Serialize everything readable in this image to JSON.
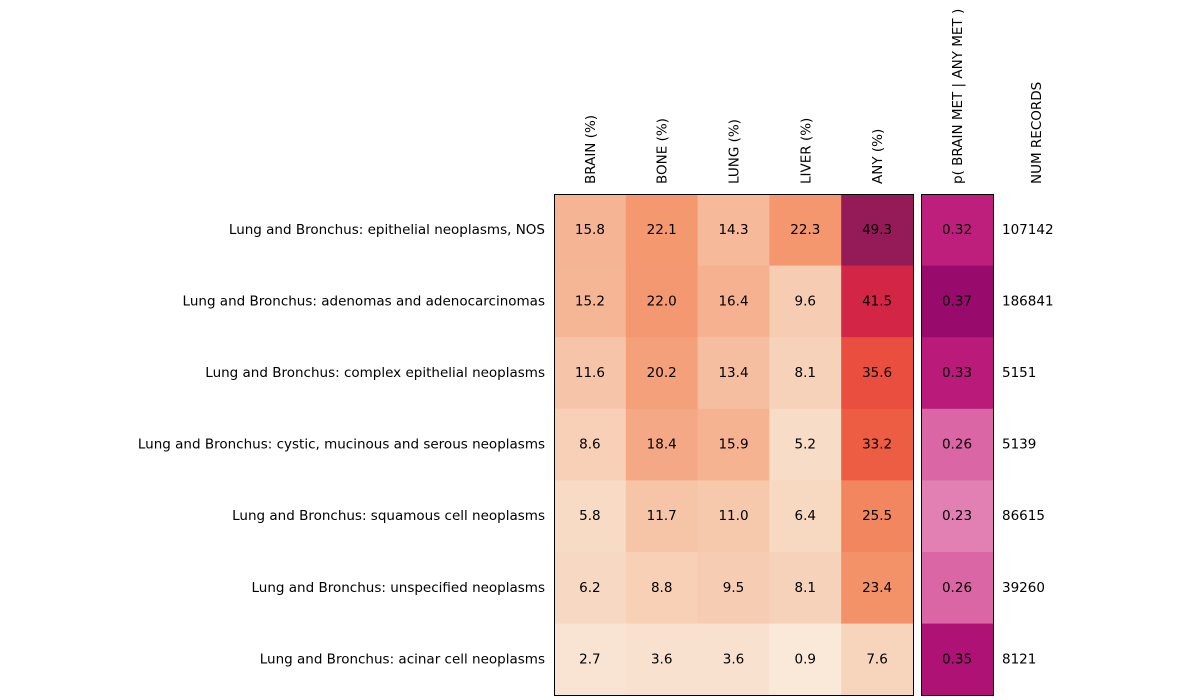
{
  "chart_data": {
    "type": "heatmap",
    "rows": [
      "Lung and Bronchus: epithelial neoplasms, NOS",
      "Lung and Bronchus: adenomas and adenocarcinomas",
      "Lung and Bronchus: complex epithelial neoplasms",
      "Lung and Bronchus: cystic, mucinous and serous neoplasms",
      "Lung and Bronchus: squamous cell neoplasms",
      "Lung and Bronchus: unspecified neoplasms",
      "Lung and Bronchus: acinar cell neoplasms"
    ],
    "columns": [
      "BRAIN (%)",
      "BONE (%)",
      "LUNG (%)",
      "LIVER (%)",
      "ANY (%)"
    ],
    "values": [
      [
        "15.8",
        "22.1",
        "14.3",
        "22.3",
        "49.3"
      ],
      [
        "15.2",
        "22.0",
        "16.4",
        "9.6",
        "41.5"
      ],
      [
        "11.6",
        "20.2",
        "13.4",
        "8.1",
        "35.6"
      ],
      [
        "8.6",
        "18.4",
        "15.9",
        "5.2",
        "33.2"
      ],
      [
        "5.8",
        "11.7",
        "11.0",
        "6.4",
        "25.5"
      ],
      [
        "6.2",
        "8.8",
        "9.5",
        "8.1",
        "23.4"
      ],
      [
        "2.7",
        "3.6",
        "3.6",
        "0.9",
        "7.6"
      ]
    ],
    "p_column": {
      "label": "p( BRAIN MET | ANY MET )",
      "values": [
        "0.32",
        "0.37",
        "0.33",
        "0.26",
        "0.23",
        "0.26",
        "0.35"
      ]
    },
    "count_column": {
      "label": "NUM RECORDS",
      "values": [
        "107142",
        "186841",
        "5151",
        "5139",
        "86615",
        "39260",
        "8121"
      ]
    },
    "colormap": "rocket_r",
    "p_colormap": "RdPu"
  }
}
